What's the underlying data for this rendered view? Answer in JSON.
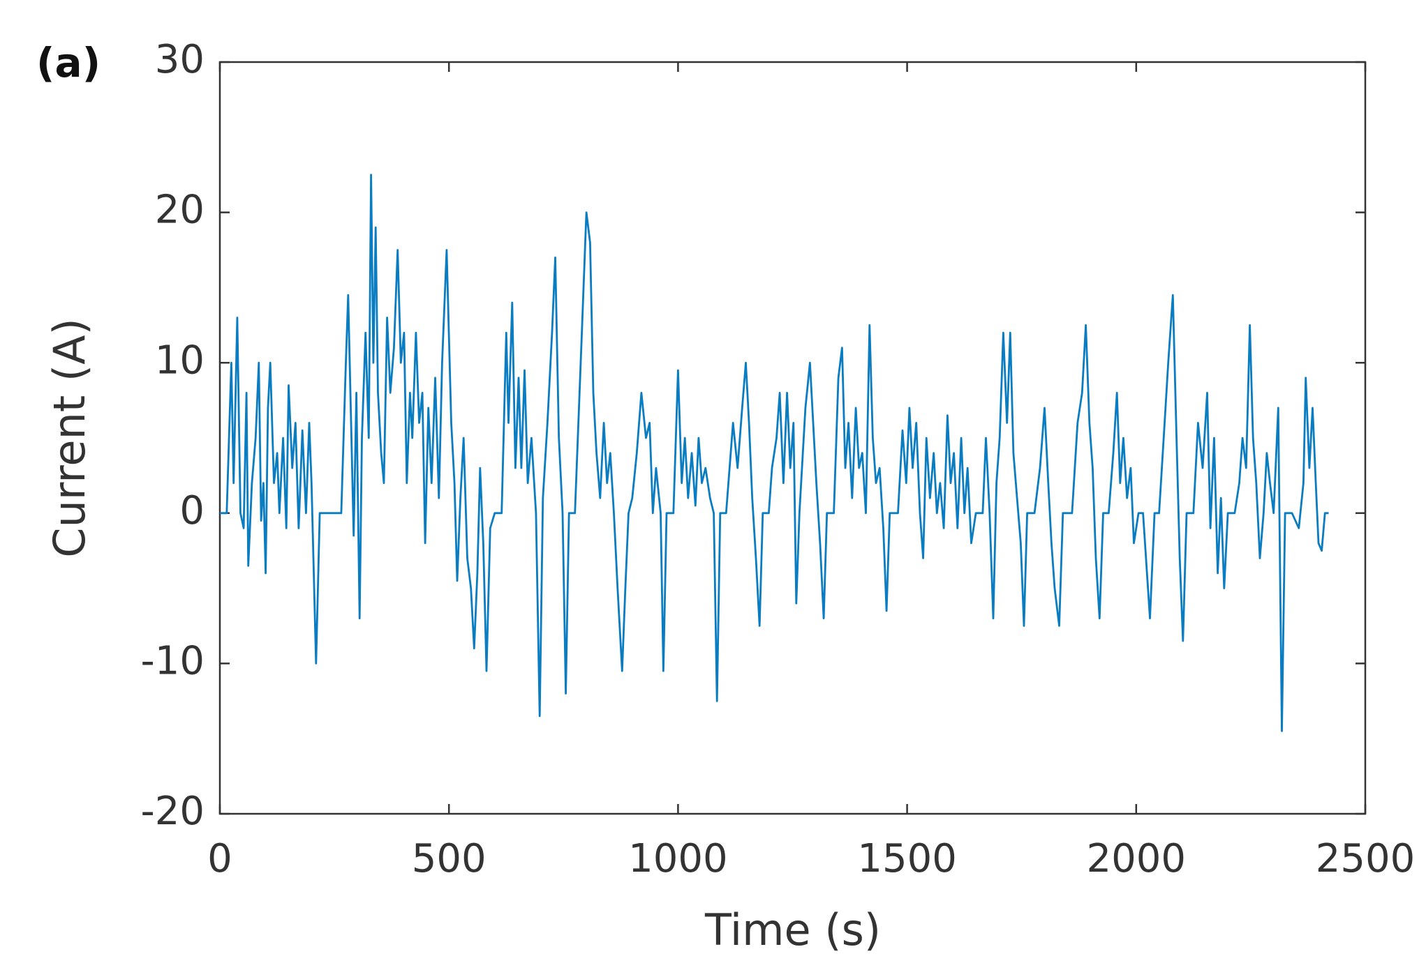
{
  "chart_data": {
    "type": "line",
    "panel_label": "(a)",
    "xlabel": "Time (s)",
    "ylabel": "Current (A)",
    "color": "#0a7cc1",
    "xlim": [
      0,
      2500
    ],
    "xticks": [
      0,
      500,
      1000,
      1500,
      2000,
      2500
    ],
    "ylim": [
      -20,
      30
    ],
    "yticks": [
      -20,
      -10,
      0,
      10,
      20,
      30
    ],
    "x": [
      0,
      15,
      20,
      25,
      30,
      38,
      45,
      52,
      58,
      62,
      70,
      78,
      85,
      90,
      95,
      100,
      105,
      110,
      118,
      125,
      130,
      138,
      145,
      150,
      158,
      165,
      172,
      180,
      188,
      195,
      200,
      210,
      218,
      230,
      265,
      275,
      280,
      288,
      292,
      298,
      305,
      310,
      318,
      325,
      330,
      335,
      340,
      345,
      352,
      358,
      365,
      372,
      380,
      388,
      395,
      402,
      408,
      415,
      420,
      428,
      435,
      442,
      448,
      455,
      462,
      470,
      478,
      485,
      495,
      505,
      512,
      518,
      525,
      532,
      540,
      548,
      555,
      562,
      568,
      575,
      582,
      590,
      600,
      615,
      625,
      630,
      638,
      645,
      652,
      658,
      665,
      672,
      680,
      690,
      698,
      705,
      715,
      725,
      732,
      740,
      748,
      755,
      762,
      775,
      790,
      800,
      808,
      815,
      822,
      830,
      838,
      845,
      852,
      860,
      868,
      878,
      885,
      892,
      900,
      910,
      920,
      930,
      938,
      945,
      952,
      962,
      968,
      975,
      990,
      1000,
      1008,
      1015,
      1022,
      1030,
      1038,
      1045,
      1052,
      1060,
      1070,
      1078,
      1085,
      1092,
      1105,
      1120,
      1130,
      1140,
      1148,
      1155,
      1162,
      1170,
      1178,
      1185,
      1198,
      1205,
      1215,
      1222,
      1230,
      1238,
      1245,
      1252,
      1258,
      1265,
      1278,
      1288,
      1295,
      1302,
      1310,
      1318,
      1325,
      1340,
      1350,
      1358,
      1365,
      1372,
      1380,
      1388,
      1395,
      1402,
      1410,
      1418,
      1425,
      1432,
      1440,
      1448,
      1455,
      1462,
      1480,
      1490,
      1498,
      1505,
      1512,
      1520,
      1528,
      1535,
      1542,
      1550,
      1558,
      1565,
      1572,
      1580,
      1588,
      1595,
      1602,
      1610,
      1618,
      1625,
      1632,
      1640,
      1650,
      1665,
      1672,
      1680,
      1688,
      1695,
      1702,
      1710,
      1718,
      1725,
      1732,
      1740,
      1748,
      1755,
      1762,
      1778,
      1790,
      1800,
      1808,
      1815,
      1822,
      1832,
      1840,
      1860,
      1872,
      1882,
      1890,
      1898,
      1905,
      1912,
      1920,
      1928,
      1940,
      1950,
      1958,
      1965,
      1972,
      1980,
      1988,
      1995,
      2005,
      2015,
      2030,
      2040,
      2050,
      2060,
      2070,
      2080,
      2088,
      2095,
      2102,
      2110,
      2125,
      2135,
      2145,
      2155,
      2162,
      2170,
      2178,
      2185,
      2192,
      2200,
      2215,
      2225,
      2232,
      2240,
      2248,
      2255,
      2262,
      2270,
      2278,
      2285,
      2292,
      2300,
      2310,
      2318,
      2325,
      2340,
      2355,
      2365,
      2370,
      2378,
      2385,
      2392,
      2398,
      2405,
      2412,
      2420
    ],
    "values": [
      0,
      0,
      5,
      10,
      2,
      13,
      0,
      -1,
      8,
      -3.5,
      2,
      5,
      10,
      -0.5,
      2,
      -4,
      7,
      10,
      2,
      4,
      0,
      5,
      -1,
      8.5,
      3,
      6,
      -1,
      5.5,
      0,
      6,
      2,
      -10,
      0,
      0,
      0,
      10,
      14.5,
      4,
      -1.5,
      8,
      -7,
      5,
      12,
      5,
      22.5,
      10,
      19,
      8,
      4,
      2,
      13,
      8,
      11,
      17.5,
      10,
      12,
      2,
      8,
      5,
      12,
      6,
      8,
      -2,
      7,
      2,
      9,
      1,
      10,
      17.5,
      6,
      2,
      -4.5,
      1,
      5,
      -3,
      -5,
      -9,
      -4,
      3,
      -2,
      -10.5,
      -1,
      0,
      0,
      12,
      6,
      14,
      3,
      9,
      3,
      9.5,
      2,
      5,
      0,
      -13.5,
      1,
      6,
      12,
      17,
      5,
      0,
      -12,
      0,
      0,
      12,
      20,
      18,
      8,
      4,
      1,
      6,
      2,
      4,
      0,
      -5,
      -10.5,
      -5,
      0,
      1,
      4,
      8,
      5,
      6,
      0,
      3,
      0,
      -10.5,
      0,
      0,
      9.5,
      2,
      5,
      1,
      4,
      0.5,
      5,
      2,
      3,
      1,
      0,
      -12.5,
      0,
      0,
      6,
      3,
      7,
      10,
      6,
      1,
      -3,
      -7.5,
      0,
      0,
      3,
      5,
      8,
      2,
      8,
      3,
      6,
      -6,
      0,
      7,
      10,
      6,
      2,
      -2,
      -7,
      0,
      0,
      9,
      11,
      3,
      6,
      1,
      7,
      3,
      4,
      0,
      12.5,
      5,
      2,
      3,
      -1,
      -6.5,
      0,
      0,
      5.5,
      2,
      7,
      3,
      6,
      0,
      -3,
      5,
      1,
      4,
      0,
      2,
      -1,
      6.5,
      2,
      4,
      -1,
      5,
      0,
      3,
      -2,
      0,
      0,
      5,
      0,
      -7,
      2,
      5,
      12,
      6,
      12,
      4,
      1,
      -2,
      -7.5,
      0,
      0,
      3,
      7,
      2,
      -2,
      -5,
      -7.5,
      0,
      0,
      6,
      8,
      12.5,
      6,
      3,
      -3,
      -7,
      0,
      0,
      4,
      8,
      2,
      5,
      1,
      3,
      -2,
      0,
      0,
      -7,
      0,
      0,
      5,
      10,
      14.5,
      5,
      -3,
      -8.5,
      0,
      0,
      6,
      3,
      8,
      -1,
      5,
      -4,
      1,
      -5,
      0,
      0,
      2,
      5,
      3,
      12.5,
      5,
      2,
      -3,
      0,
      4,
      2,
      0,
      7,
      -14.5,
      0,
      0,
      -1,
      2,
      9,
      3,
      7,
      2,
      -2,
      -2.5,
      0,
      0
    ]
  }
}
